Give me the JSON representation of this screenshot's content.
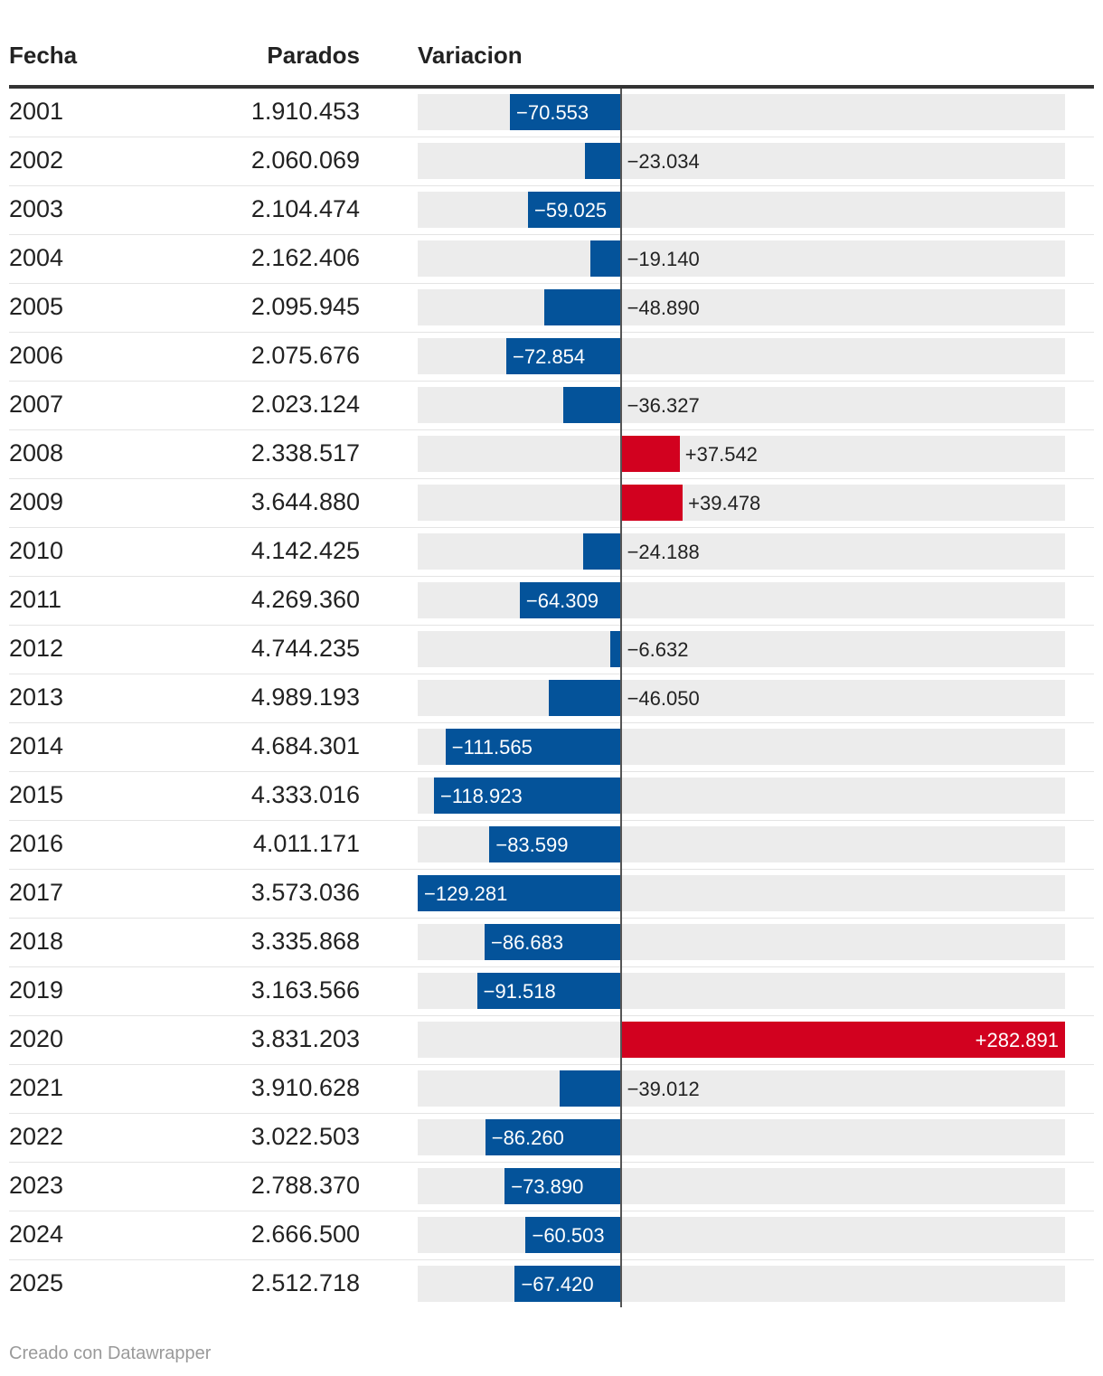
{
  "headers": {
    "fecha": "Fecha",
    "parados": "Parados",
    "variacion": "Variacion"
  },
  "footer": "Creado con Datawrapper",
  "colors": {
    "negative": "#04539a",
    "positive": "#d2011f",
    "track": "#ececec"
  },
  "chart_data": {
    "type": "table",
    "columns": [
      "Fecha",
      "Parados",
      "Variacion"
    ],
    "bar_column": "Variacion",
    "bar_range": [
      -129281,
      282891
    ],
    "rows": [
      {
        "fecha": "2001",
        "parados": "1.910.453",
        "variacion": -70553,
        "label": "−70.553"
      },
      {
        "fecha": "2002",
        "parados": "2.060.069",
        "variacion": -23034,
        "label": "−23.034"
      },
      {
        "fecha": "2003",
        "parados": "2.104.474",
        "variacion": -59025,
        "label": "−59.025"
      },
      {
        "fecha": "2004",
        "parados": "2.162.406",
        "variacion": -19140,
        "label": "−19.140"
      },
      {
        "fecha": "2005",
        "parados": "2.095.945",
        "variacion": -48890,
        "label": "−48.890"
      },
      {
        "fecha": "2006",
        "parados": "2.075.676",
        "variacion": -72854,
        "label": "−72.854"
      },
      {
        "fecha": "2007",
        "parados": "2.023.124",
        "variacion": -36327,
        "label": "−36.327"
      },
      {
        "fecha": "2008",
        "parados": "2.338.517",
        "variacion": 37542,
        "label": "+37.542"
      },
      {
        "fecha": "2009",
        "parados": "3.644.880",
        "variacion": 39478,
        "label": "+39.478"
      },
      {
        "fecha": "2010",
        "parados": "4.142.425",
        "variacion": -24188,
        "label": "−24.188"
      },
      {
        "fecha": "2011",
        "parados": "4.269.360",
        "variacion": -64309,
        "label": "−64.309"
      },
      {
        "fecha": "2012",
        "parados": "4.744.235",
        "variacion": -6632,
        "label": "−6.632"
      },
      {
        "fecha": "2013",
        "parados": "4.989.193",
        "variacion": -46050,
        "label": "−46.050"
      },
      {
        "fecha": "2014",
        "parados": "4.684.301",
        "variacion": -111565,
        "label": "−111.565"
      },
      {
        "fecha": "2015",
        "parados": "4.333.016",
        "variacion": -118923,
        "label": "−118.923"
      },
      {
        "fecha": "2016",
        "parados": "4.011.171",
        "variacion": -83599,
        "label": "−83.599"
      },
      {
        "fecha": "2017",
        "parados": "3.573.036",
        "variacion": -129281,
        "label": "−129.281"
      },
      {
        "fecha": "2018",
        "parados": "3.335.868",
        "variacion": -86683,
        "label": "−86.683"
      },
      {
        "fecha": "2019",
        "parados": "3.163.566",
        "variacion": -91518,
        "label": "−91.518"
      },
      {
        "fecha": "2020",
        "parados": "3.831.203",
        "variacion": 282891,
        "label": "+282.891"
      },
      {
        "fecha": "2021",
        "parados": "3.910.628",
        "variacion": -39012,
        "label": "−39.012"
      },
      {
        "fecha": "2022",
        "parados": "3.022.503",
        "variacion": -86260,
        "label": "−86.260"
      },
      {
        "fecha": "2023",
        "parados": "2.788.370",
        "variacion": -73890,
        "label": "−73.890"
      },
      {
        "fecha": "2024",
        "parados": "2.666.500",
        "variacion": -60503,
        "label": "−60.503"
      },
      {
        "fecha": "2025",
        "parados": "2.512.718",
        "variacion": -67420,
        "label": "−67.420"
      }
    ]
  }
}
